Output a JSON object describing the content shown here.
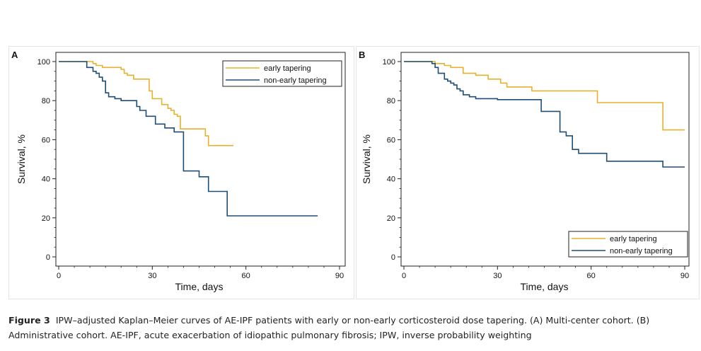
{
  "chart_data": [
    {
      "type": "line",
      "panel_label": "A",
      "xlabel": "Time, days",
      "ylabel": "Survival, %",
      "xlim": [
        0,
        90
      ],
      "ylim": [
        0,
        100
      ],
      "xticks": [
        0,
        30,
        60,
        90
      ],
      "yticks": [
        0,
        20,
        40,
        60,
        80,
        100
      ],
      "legend_position": "top-right",
      "series": [
        {
          "name": "early tapering",
          "color": "#e6b12d",
          "step": true,
          "x": [
            0,
            9,
            11,
            12,
            14,
            17,
            20,
            21,
            22,
            24,
            28,
            29,
            30,
            33,
            35,
            36,
            37,
            38,
            39,
            44,
            47,
            48,
            56
          ],
          "y": [
            100,
            100,
            99,
            98,
            97,
            97,
            96,
            94,
            93,
            91,
            91,
            85,
            81,
            78,
            76,
            75,
            73,
            72,
            65.5,
            65.5,
            62,
            57,
            57
          ]
        },
        {
          "name": "non-early tapering",
          "color": "#1e4e75",
          "step": true,
          "x": [
            0,
            8,
            9,
            11,
            12,
            13,
            14,
            15,
            16,
            18,
            19,
            20,
            25,
            26,
            28,
            31,
            34,
            37,
            40,
            44,
            45,
            46,
            48,
            54,
            83
          ],
          "y": [
            100,
            100,
            97,
            95,
            94,
            92,
            90,
            84,
            82,
            81,
            81,
            80,
            77,
            75,
            72,
            68,
            66,
            64,
            44,
            44,
            41,
            41,
            33.5,
            21,
            21
          ]
        }
      ]
    },
    {
      "type": "line",
      "panel_label": "B",
      "xlabel": "Time, days",
      "ylabel": "Survival, %",
      "xlim": [
        0,
        90
      ],
      "ylim": [
        0,
        100
      ],
      "xticks": [
        0,
        30,
        60,
        90
      ],
      "yticks": [
        0,
        20,
        40,
        60,
        80,
        100
      ],
      "legend_position": "bottom-right",
      "series": [
        {
          "name": "early tapering",
          "color": "#e6b12d",
          "step": true,
          "x": [
            0,
            8,
            10,
            13,
            15,
            19,
            23,
            27,
            31,
            33,
            41,
            58,
            62,
            83,
            90
          ],
          "y": [
            100,
            100,
            99,
            98,
            97,
            94,
            93,
            91,
            89,
            87,
            85,
            85,
            79,
            65,
            65
          ]
        },
        {
          "name": "non-early tapering",
          "color": "#1e4e75",
          "step": true,
          "x": [
            0,
            8,
            9,
            10,
            11,
            13,
            14,
            15,
            16,
            17,
            18,
            19,
            21,
            22,
            23,
            25,
            27,
            30,
            40,
            44,
            46,
            50,
            52,
            54,
            56,
            65,
            83,
            90
          ],
          "y": [
            100,
            100,
            99,
            97,
            94,
            91,
            90,
            89,
            88,
            86,
            85,
            83,
            82,
            82,
            81,
            81,
            81,
            80.5,
            80.5,
            74.5,
            74.5,
            64,
            62,
            55,
            53,
            49,
            46,
            46
          ]
        }
      ]
    }
  ],
  "caption": {
    "figure_label": "Figure 3",
    "text": "IPW–adjusted Kaplan–Meier curves of AE-IPF patients with early or non-early corticosteroid dose tapering. (A) Multi-center cohort. (B) Administrative cohort. AE-IPF, acute exacerbation of idiopathic pulmonary fibrosis; IPW, inverse probability weighting"
  }
}
